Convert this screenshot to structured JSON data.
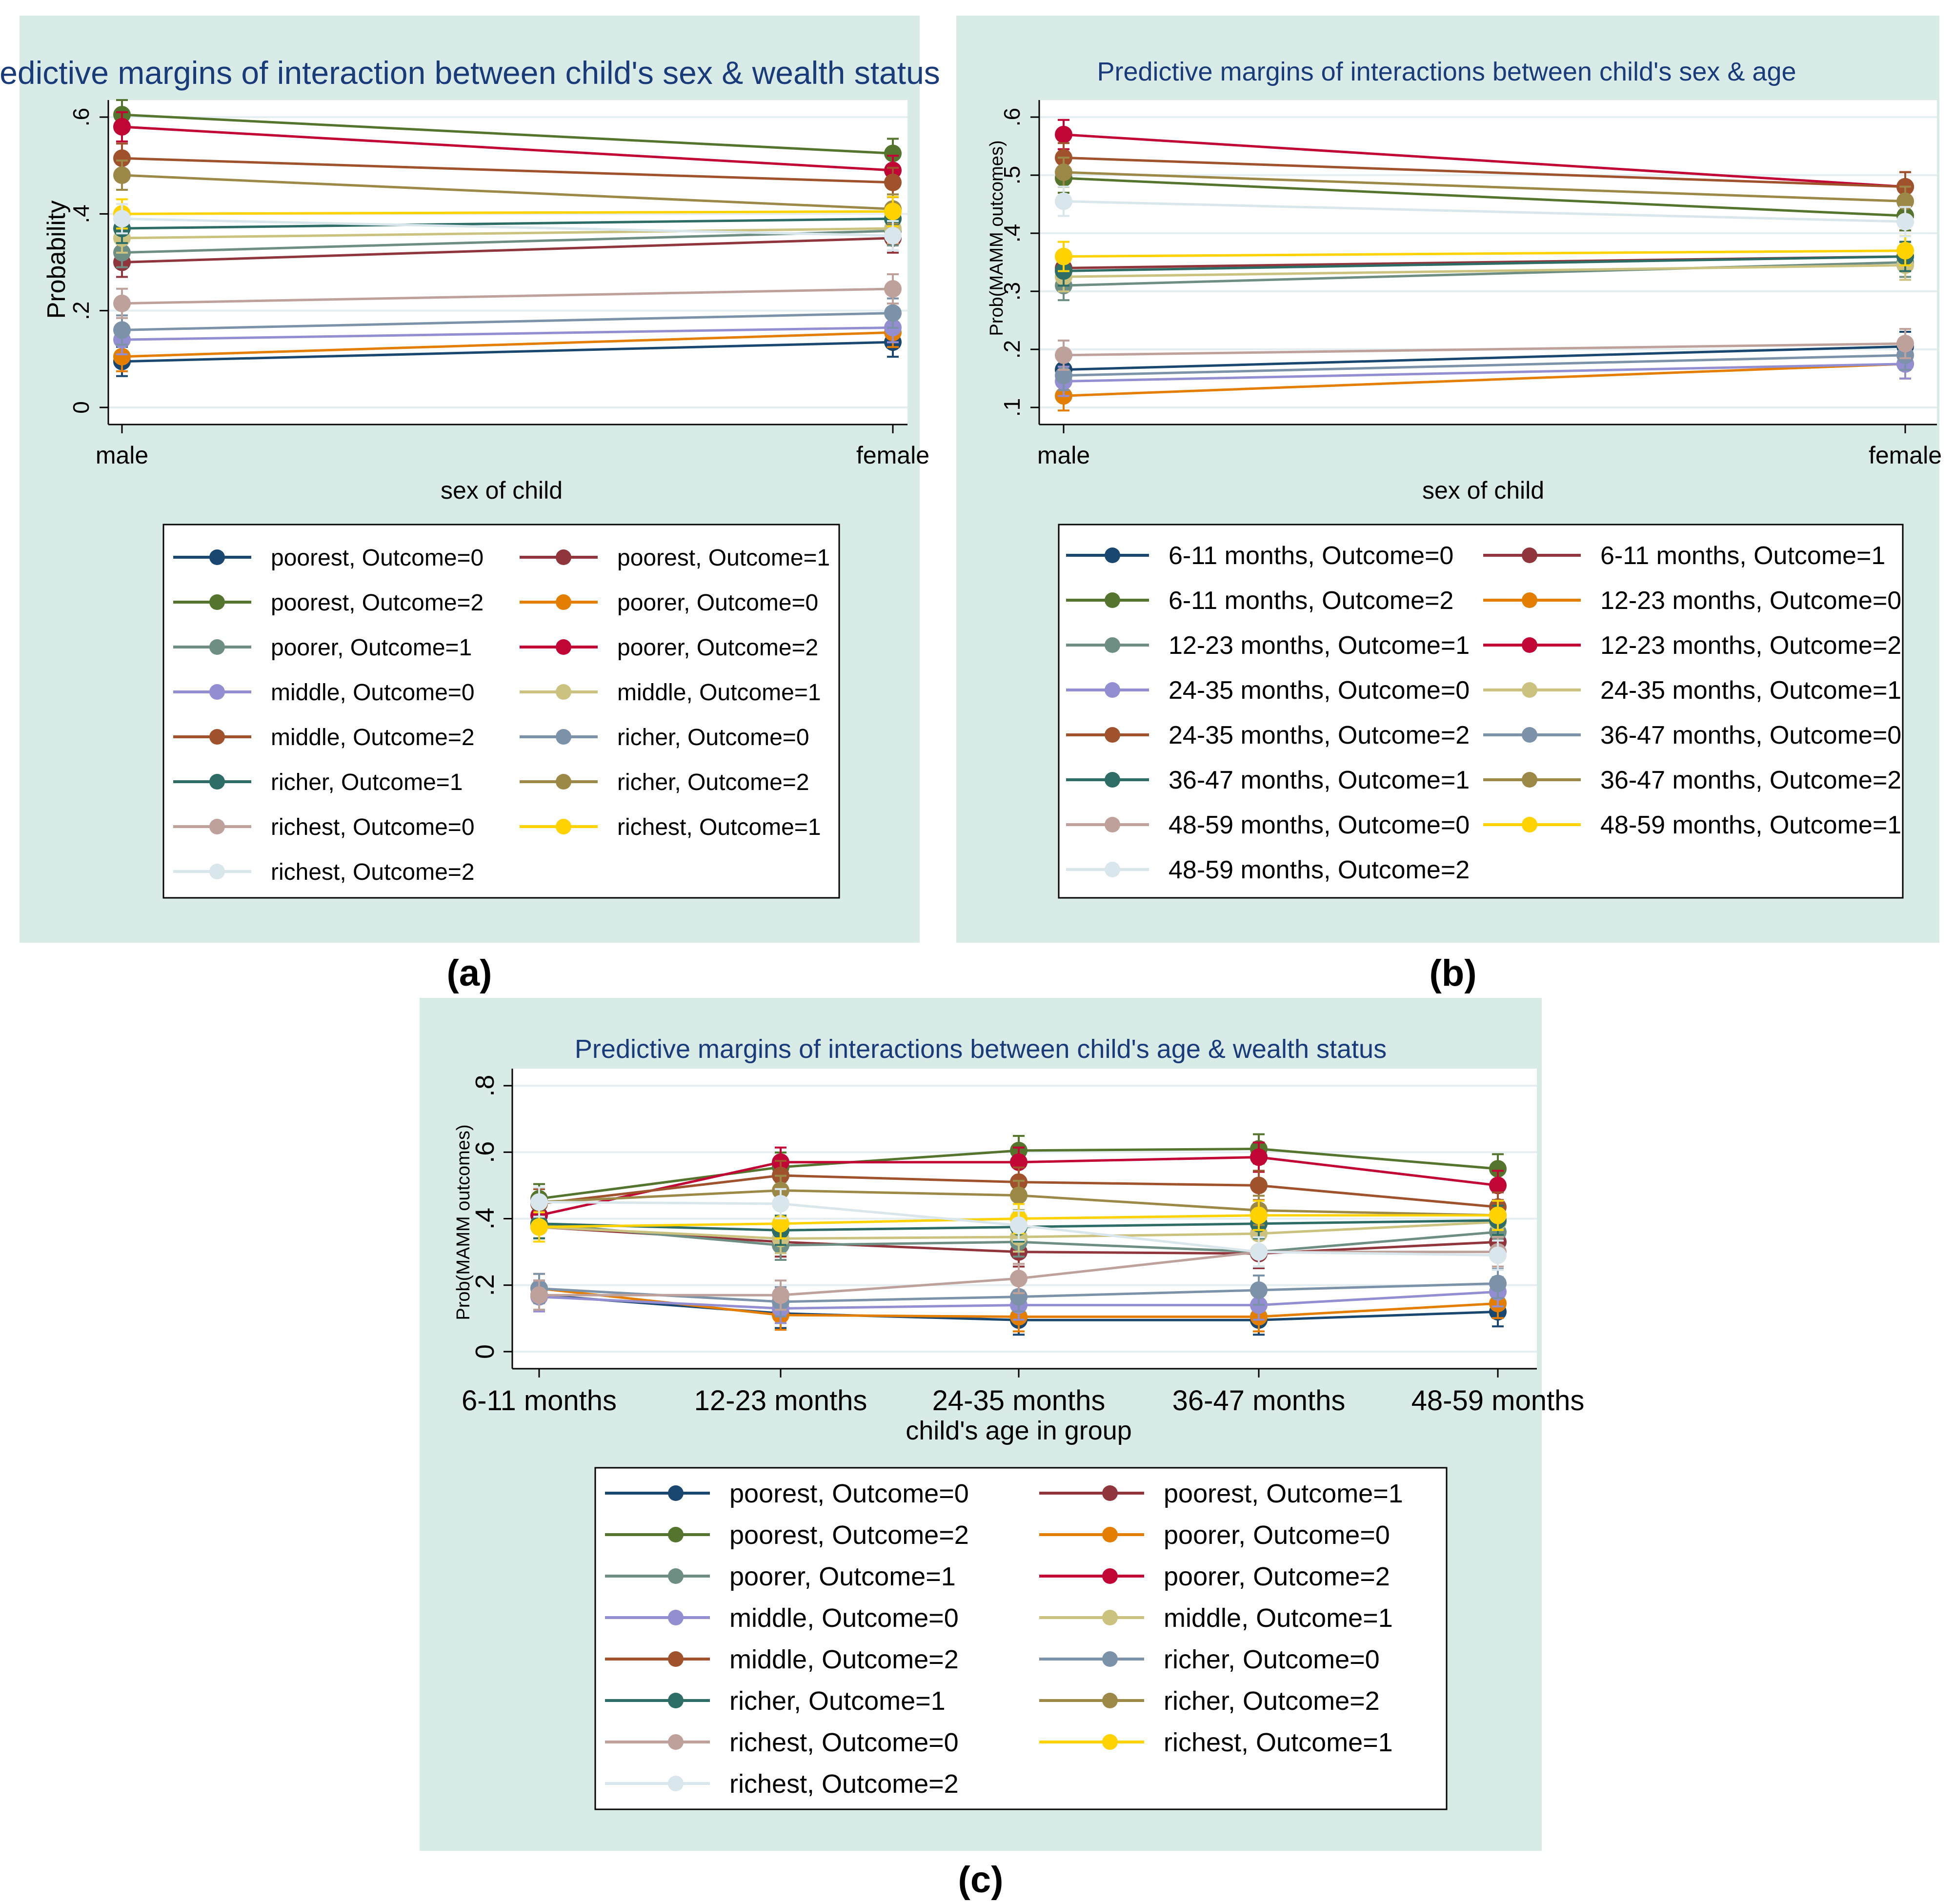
{
  "figure": {
    "colors": {
      "panel_bg": "#d9ebe6",
      "plot_bg": "#ffffff",
      "grid": "#e5eef0",
      "title": "#1a3b7a",
      "axis": "#000000"
    },
    "panel_letters": [
      "(a)",
      "(b)",
      "(c)"
    ]
  },
  "chart_data": [
    {
      "type": "line",
      "panel": "(a)",
      "title": "Predictive margins of interaction between child's sex & wealth status",
      "xlabel": "sex of child",
      "ylabel": "Probability",
      "categories": [
        "male",
        "female"
      ],
      "ylim": [
        0,
        0.6
      ],
      "yticks": [
        0,
        0.2,
        0.4,
        0.6
      ],
      "ytick_labels": [
        "0",
        ".2",
        ".4",
        ".6"
      ],
      "grid": true,
      "error_bars": true,
      "legend_columns": 2,
      "legend_position": "bottom",
      "series": [
        {
          "name": "poorest, Outcome=0",
          "color": "#1a476f",
          "values": [
            0.095,
            0.135
          ]
        },
        {
          "name": "poorest, Outcome=1",
          "color": "#90353b",
          "values": [
            0.3,
            0.35
          ]
        },
        {
          "name": "poorest, Outcome=2",
          "color": "#55752f",
          "values": [
            0.605,
            0.525
          ]
        },
        {
          "name": "poorer, Outcome=0",
          "color": "#e37e00",
          "values": [
            0.105,
            0.155
          ]
        },
        {
          "name": "poorer, Outcome=1",
          "color": "#6e8e84",
          "values": [
            0.32,
            0.365
          ]
        },
        {
          "name": "poorer, Outcome=2",
          "color": "#c10534",
          "values": [
            0.58,
            0.49
          ]
        },
        {
          "name": "middle, Outcome=0",
          "color": "#938dd2",
          "values": [
            0.14,
            0.165
          ]
        },
        {
          "name": "middle, Outcome=1",
          "color": "#cac27e",
          "values": [
            0.35,
            0.37
          ]
        },
        {
          "name": "middle, Outcome=2",
          "color": "#a0522d",
          "values": [
            0.515,
            0.465
          ]
        },
        {
          "name": "richer, Outcome=0",
          "color": "#7b92a8",
          "values": [
            0.16,
            0.195
          ]
        },
        {
          "name": "richer, Outcome=1",
          "color": "#2d6d66",
          "values": [
            0.37,
            0.39
          ]
        },
        {
          "name": "richer, Outcome=2",
          "color": "#9c8847",
          "values": [
            0.48,
            0.41
          ]
        },
        {
          "name": "richest, Outcome=0",
          "color": "#bfa19c",
          "values": [
            0.215,
            0.245
          ]
        },
        {
          "name": "richest, Outcome=1",
          "color": "#ffd200",
          "values": [
            0.4,
            0.405
          ]
        },
        {
          "name": "richest, Outcome=2",
          "color": "#d9e6eb",
          "values": [
            0.39,
            0.355
          ]
        }
      ]
    },
    {
      "type": "line",
      "panel": "(b)",
      "title": "Predictive margins of interactions between child's sex & age",
      "xlabel": "sex of child",
      "ylabel": "Prob(MAMM outcomes)",
      "categories": [
        "male",
        "female"
      ],
      "ylim": [
        0.1,
        0.6
      ],
      "yticks": [
        0.1,
        0.2,
        0.3,
        0.4,
        0.5,
        0.6
      ],
      "ytick_labels": [
        ".1",
        ".2",
        ".3",
        ".4",
        ".5",
        ".6"
      ],
      "grid": true,
      "error_bars": true,
      "legend_columns": 2,
      "legend_position": "bottom",
      "series": [
        {
          "name": "6-11 months, Outcome=0",
          "color": "#1a476f",
          "values": [
            0.165,
            0.205
          ]
        },
        {
          "name": "6-11 months, Outcome=1",
          "color": "#90353b",
          "values": [
            0.34,
            0.36
          ]
        },
        {
          "name": "6-11 months, Outcome=2",
          "color": "#55752f",
          "values": [
            0.495,
            0.43
          ]
        },
        {
          "name": "12-23 months, Outcome=0",
          "color": "#e37e00",
          "values": [
            0.12,
            0.175
          ]
        },
        {
          "name": "12-23 months, Outcome=1",
          "color": "#6e8e84",
          "values": [
            0.31,
            0.35
          ]
        },
        {
          "name": "12-23 months, Outcome=2",
          "color": "#c10534",
          "values": [
            0.57,
            0.48
          ]
        },
        {
          "name": "24-35 months, Outcome=0",
          "color": "#938dd2",
          "values": [
            0.145,
            0.175
          ]
        },
        {
          "name": "24-35 months, Outcome=1",
          "color": "#cac27e",
          "values": [
            0.325,
            0.345
          ]
        },
        {
          "name": "24-35 months, Outcome=2",
          "color": "#a0522d",
          "values": [
            0.53,
            0.48
          ]
        },
        {
          "name": "36-47 months, Outcome=0",
          "color": "#7b92a8",
          "values": [
            0.155,
            0.19
          ]
        },
        {
          "name": "36-47 months, Outcome=1",
          "color": "#2d6d66",
          "values": [
            0.335,
            0.36
          ]
        },
        {
          "name": "36-47 months, Outcome=2",
          "color": "#9c8847",
          "values": [
            0.505,
            0.455
          ]
        },
        {
          "name": "48-59 months, Outcome=0",
          "color": "#bfa19c",
          "values": [
            0.19,
            0.21
          ]
        },
        {
          "name": "48-59 months, Outcome=1",
          "color": "#ffd200",
          "values": [
            0.36,
            0.37
          ]
        },
        {
          "name": "48-59 months, Outcome=2",
          "color": "#d9e6eb",
          "values": [
            0.455,
            0.42
          ]
        }
      ]
    },
    {
      "type": "line",
      "panel": "(c)",
      "title": "Predictive margins of interactions between child's age & wealth status",
      "xlabel": "child's age in group",
      "ylabel": "Prob(MAMM outcomes)",
      "categories": [
        "6-11 months",
        "12-23 months",
        "24-35 months",
        "36-47 months",
        "48-59 months"
      ],
      "ylim": [
        0,
        0.8
      ],
      "yticks": [
        0,
        0.2,
        0.4,
        0.6,
        0.8
      ],
      "ytick_labels": [
        "0",
        ".2",
        ".4",
        ".6",
        ".8"
      ],
      "grid": true,
      "error_bars": true,
      "legend_columns": 2,
      "legend_position": "bottom",
      "series": [
        {
          "name": "poorest, Outcome=0",
          "color": "#1a476f",
          "values": [
            0.17,
            0.115,
            0.095,
            0.095,
            0.12
          ]
        },
        {
          "name": "poorest, Outcome=1",
          "color": "#90353b",
          "values": [
            0.375,
            0.33,
            0.3,
            0.295,
            0.33
          ]
        },
        {
          "name": "poorest, Outcome=2",
          "color": "#55752f",
          "values": [
            0.46,
            0.555,
            0.605,
            0.61,
            0.55
          ]
        },
        {
          "name": "poorer, Outcome=0",
          "color": "#e37e00",
          "values": [
            0.19,
            0.11,
            0.105,
            0.105,
            0.145
          ]
        },
        {
          "name": "poorer, Outcome=1",
          "color": "#6e8e84",
          "values": [
            0.385,
            0.32,
            0.33,
            0.3,
            0.36
          ]
        },
        {
          "name": "poorer, Outcome=2",
          "color": "#c10534",
          "values": [
            0.41,
            0.57,
            0.57,
            0.585,
            0.5
          ]
        },
        {
          "name": "middle, Outcome=0",
          "color": "#938dd2",
          "values": [
            0.165,
            0.13,
            0.14,
            0.14,
            0.18
          ]
        },
        {
          "name": "middle, Outcome=1",
          "color": "#cac27e",
          "values": [
            0.375,
            0.34,
            0.345,
            0.355,
            0.39
          ]
        },
        {
          "name": "middle, Outcome=2",
          "color": "#a0522d",
          "values": [
            0.445,
            0.53,
            0.51,
            0.5,
            0.435
          ]
        },
        {
          "name": "richer, Outcome=0",
          "color": "#7b92a8",
          "values": [
            0.19,
            0.15,
            0.165,
            0.185,
            0.205
          ]
        },
        {
          "name": "richer, Outcome=1",
          "color": "#2d6d66",
          "values": [
            0.385,
            0.365,
            0.375,
            0.385,
            0.395
          ]
        },
        {
          "name": "richer, Outcome=2",
          "color": "#9c8847",
          "values": [
            0.45,
            0.485,
            0.47,
            0.425,
            0.41
          ]
        },
        {
          "name": "richest, Outcome=0",
          "color": "#bfa19c",
          "values": [
            0.17,
            0.17,
            0.22,
            0.3,
            0.3
          ]
        },
        {
          "name": "richest, Outcome=1",
          "color": "#ffd200",
          "values": [
            0.375,
            0.385,
            0.4,
            0.41,
            0.41
          ]
        },
        {
          "name": "richest, Outcome=2",
          "color": "#d9e6eb",
          "values": [
            0.45,
            0.445,
            0.38,
            0.3,
            0.29
          ]
        }
      ]
    }
  ]
}
